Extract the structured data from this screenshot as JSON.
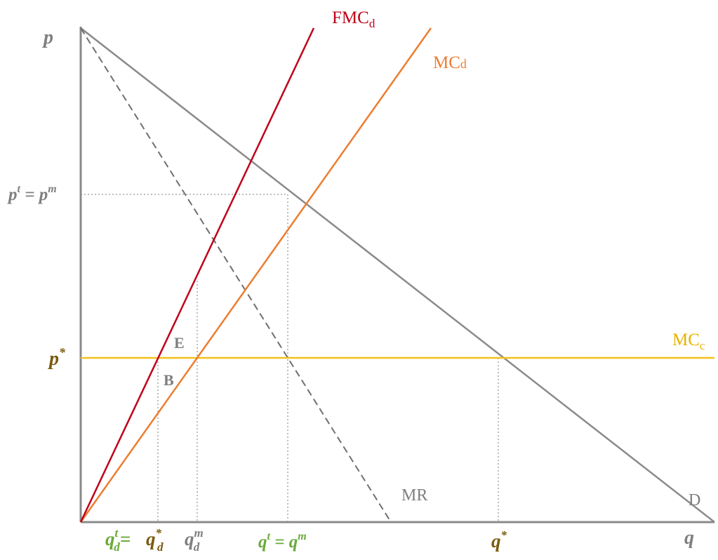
{
  "colors": {
    "axis": "#8a8a8a",
    "demand": "#8a8a8a",
    "mr": "#6f6f6f",
    "fmc": "#c0001a",
    "mcd": "#ec7d31",
    "mcc": "#f5c01a",
    "guide": "#a8a8a8",
    "label_gray": "#7f7f7f",
    "label_olive": "#7a5b0e",
    "label_green": "#6aaa3b",
    "label_red": "#c0001a",
    "label_orange": "#ec7d31",
    "label_yellow": "#e9b300"
  },
  "axes": {
    "y_label": "p",
    "x_label": "q"
  },
  "curves": {
    "fmc": {
      "main": "FMC",
      "sub": "d"
    },
    "mcd": {
      "main": "MC",
      "sub": "d"
    },
    "mcc": {
      "main": "MC",
      "sub": "c"
    },
    "mr": "MR",
    "demand": "D"
  },
  "points": {
    "E": "E",
    "B": "B"
  },
  "y_ticks": {
    "pt_pm": {
      "p1": "p",
      "s1": "t",
      "eq": " = ",
      "p2": "p",
      "s2": "m"
    },
    "pstar": {
      "p": "p",
      "s": "*"
    }
  },
  "x_ticks": {
    "qtd": {
      "q": "q",
      "sup": "t",
      "sub": "d",
      "eq": "= "
    },
    "qsd": {
      "q": "q",
      "sup": "*",
      "sub": "d"
    },
    "qmd": {
      "q": "q",
      "sup": "m",
      "sub": "d"
    },
    "qt_qm": {
      "q1": "q",
      "s1": "t",
      "eq": " = ",
      "q2": "q",
      "s2": "m"
    },
    "qstar": {
      "q": "q",
      "s": "*"
    }
  }
}
